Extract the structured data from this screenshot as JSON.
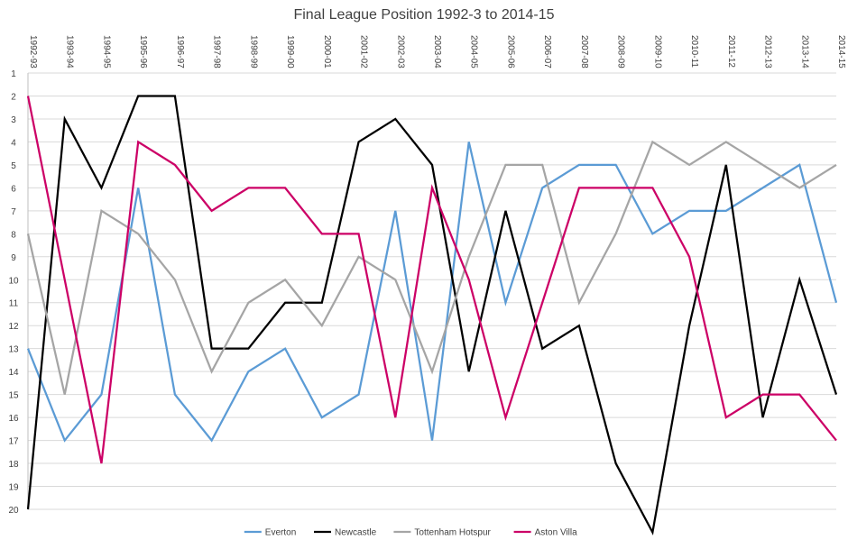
{
  "chart_data": {
    "type": "line",
    "title": "Final League Position 1992-3 to 2014-15",
    "xlabel": "",
    "ylabel": "",
    "x": [
      "1992-93",
      "1993-94",
      "1994-95",
      "1995-96",
      "1996-97",
      "1997-98",
      "1998-99",
      "1999-00",
      "2000-01",
      "2001-02",
      "2002-03",
      "2003-04",
      "2004-05",
      "2005-06",
      "2006-07",
      "2007-08",
      "2008-09",
      "2009-10",
      "2010-11",
      "2011-12",
      "2012-13",
      "2013-14",
      "2014-15"
    ],
    "yticks": [
      "1",
      "2",
      "3",
      "4",
      "5",
      "6",
      "7",
      "8",
      "9",
      "10",
      "11",
      "12",
      "13",
      "14",
      "15",
      "16",
      "17",
      "18",
      "19",
      "20"
    ],
    "ylim": [
      1,
      20
    ],
    "y_inverted": true,
    "grid": true,
    "legend_position": "bottom",
    "series": [
      {
        "name": "Everton",
        "color": "#5b9bd5",
        "values": [
          13,
          17,
          15,
          6,
          15,
          17,
          14,
          13,
          16,
          15,
          7,
          17,
          4,
          11,
          6,
          5,
          5,
          8,
          7,
          7,
          6,
          5,
          11
        ]
      },
      {
        "name": "Newcastle",
        "color": "#000000",
        "values": [
          20,
          3,
          6,
          2,
          2,
          13,
          13,
          11,
          11,
          4,
          3,
          5,
          14,
          7,
          13,
          12,
          18,
          21,
          12,
          5,
          16,
          10,
          15
        ]
      },
      {
        "name": "Tottenham Hotspur",
        "color": "#a5a5a5",
        "values": [
          8,
          15,
          7,
          8,
          10,
          14,
          11,
          10,
          12,
          9,
          10,
          14,
          9,
          5,
          5,
          11,
          8,
          4,
          5,
          4,
          5,
          6,
          5
        ]
      },
      {
        "name": "Aston Villa",
        "color": "#cc0066",
        "values": [
          2,
          10,
          18,
          4,
          5,
          7,
          6,
          6,
          8,
          8,
          16,
          6,
          10,
          16,
          11,
          6,
          6,
          6,
          9,
          16,
          15,
          15,
          17
        ]
      }
    ]
  }
}
